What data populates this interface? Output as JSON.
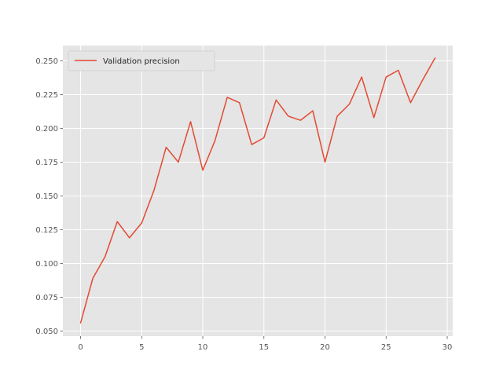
{
  "chart_data": {
    "type": "line",
    "style": "ggplot",
    "title": "",
    "xlabel": "",
    "ylabel": "",
    "xlim": [
      -1.45,
      30.45
    ],
    "ylim": [
      0.0462,
      0.2613
    ],
    "xticks": [
      0,
      5,
      10,
      15,
      20,
      25,
      30
    ],
    "yticks": [
      0.05,
      0.075,
      0.1,
      0.125,
      0.15,
      0.175,
      0.2,
      0.225,
      0.25
    ],
    "ytick_labels": [
      "0.050",
      "0.075",
      "0.100",
      "0.125",
      "0.150",
      "0.175",
      "0.200",
      "0.225",
      "0.250"
    ],
    "grid": true,
    "legend": {
      "placement": "upper-left"
    },
    "colors": {
      "background": "#e5e5e5",
      "grid": "#ffffff",
      "line": "#e24a33"
    },
    "series": [
      {
        "name": "Validation precision",
        "x": [
          0,
          1,
          2,
          3,
          4,
          5,
          6,
          7,
          8,
          9,
          10,
          11,
          12,
          13,
          14,
          15,
          16,
          17,
          18,
          19,
          20,
          21,
          22,
          23,
          24,
          25,
          26,
          27,
          28,
          29
        ],
        "values": [
          0.056,
          0.089,
          0.105,
          0.131,
          0.119,
          0.13,
          0.154,
          0.186,
          0.175,
          0.205,
          0.169,
          0.191,
          0.223,
          0.219,
          0.188,
          0.193,
          0.221,
          0.209,
          0.206,
          0.213,
          0.175,
          0.209,
          0.218,
          0.238,
          0.208,
          0.238,
          0.243,
          0.219,
          0.236,
          0.252
        ]
      }
    ]
  }
}
